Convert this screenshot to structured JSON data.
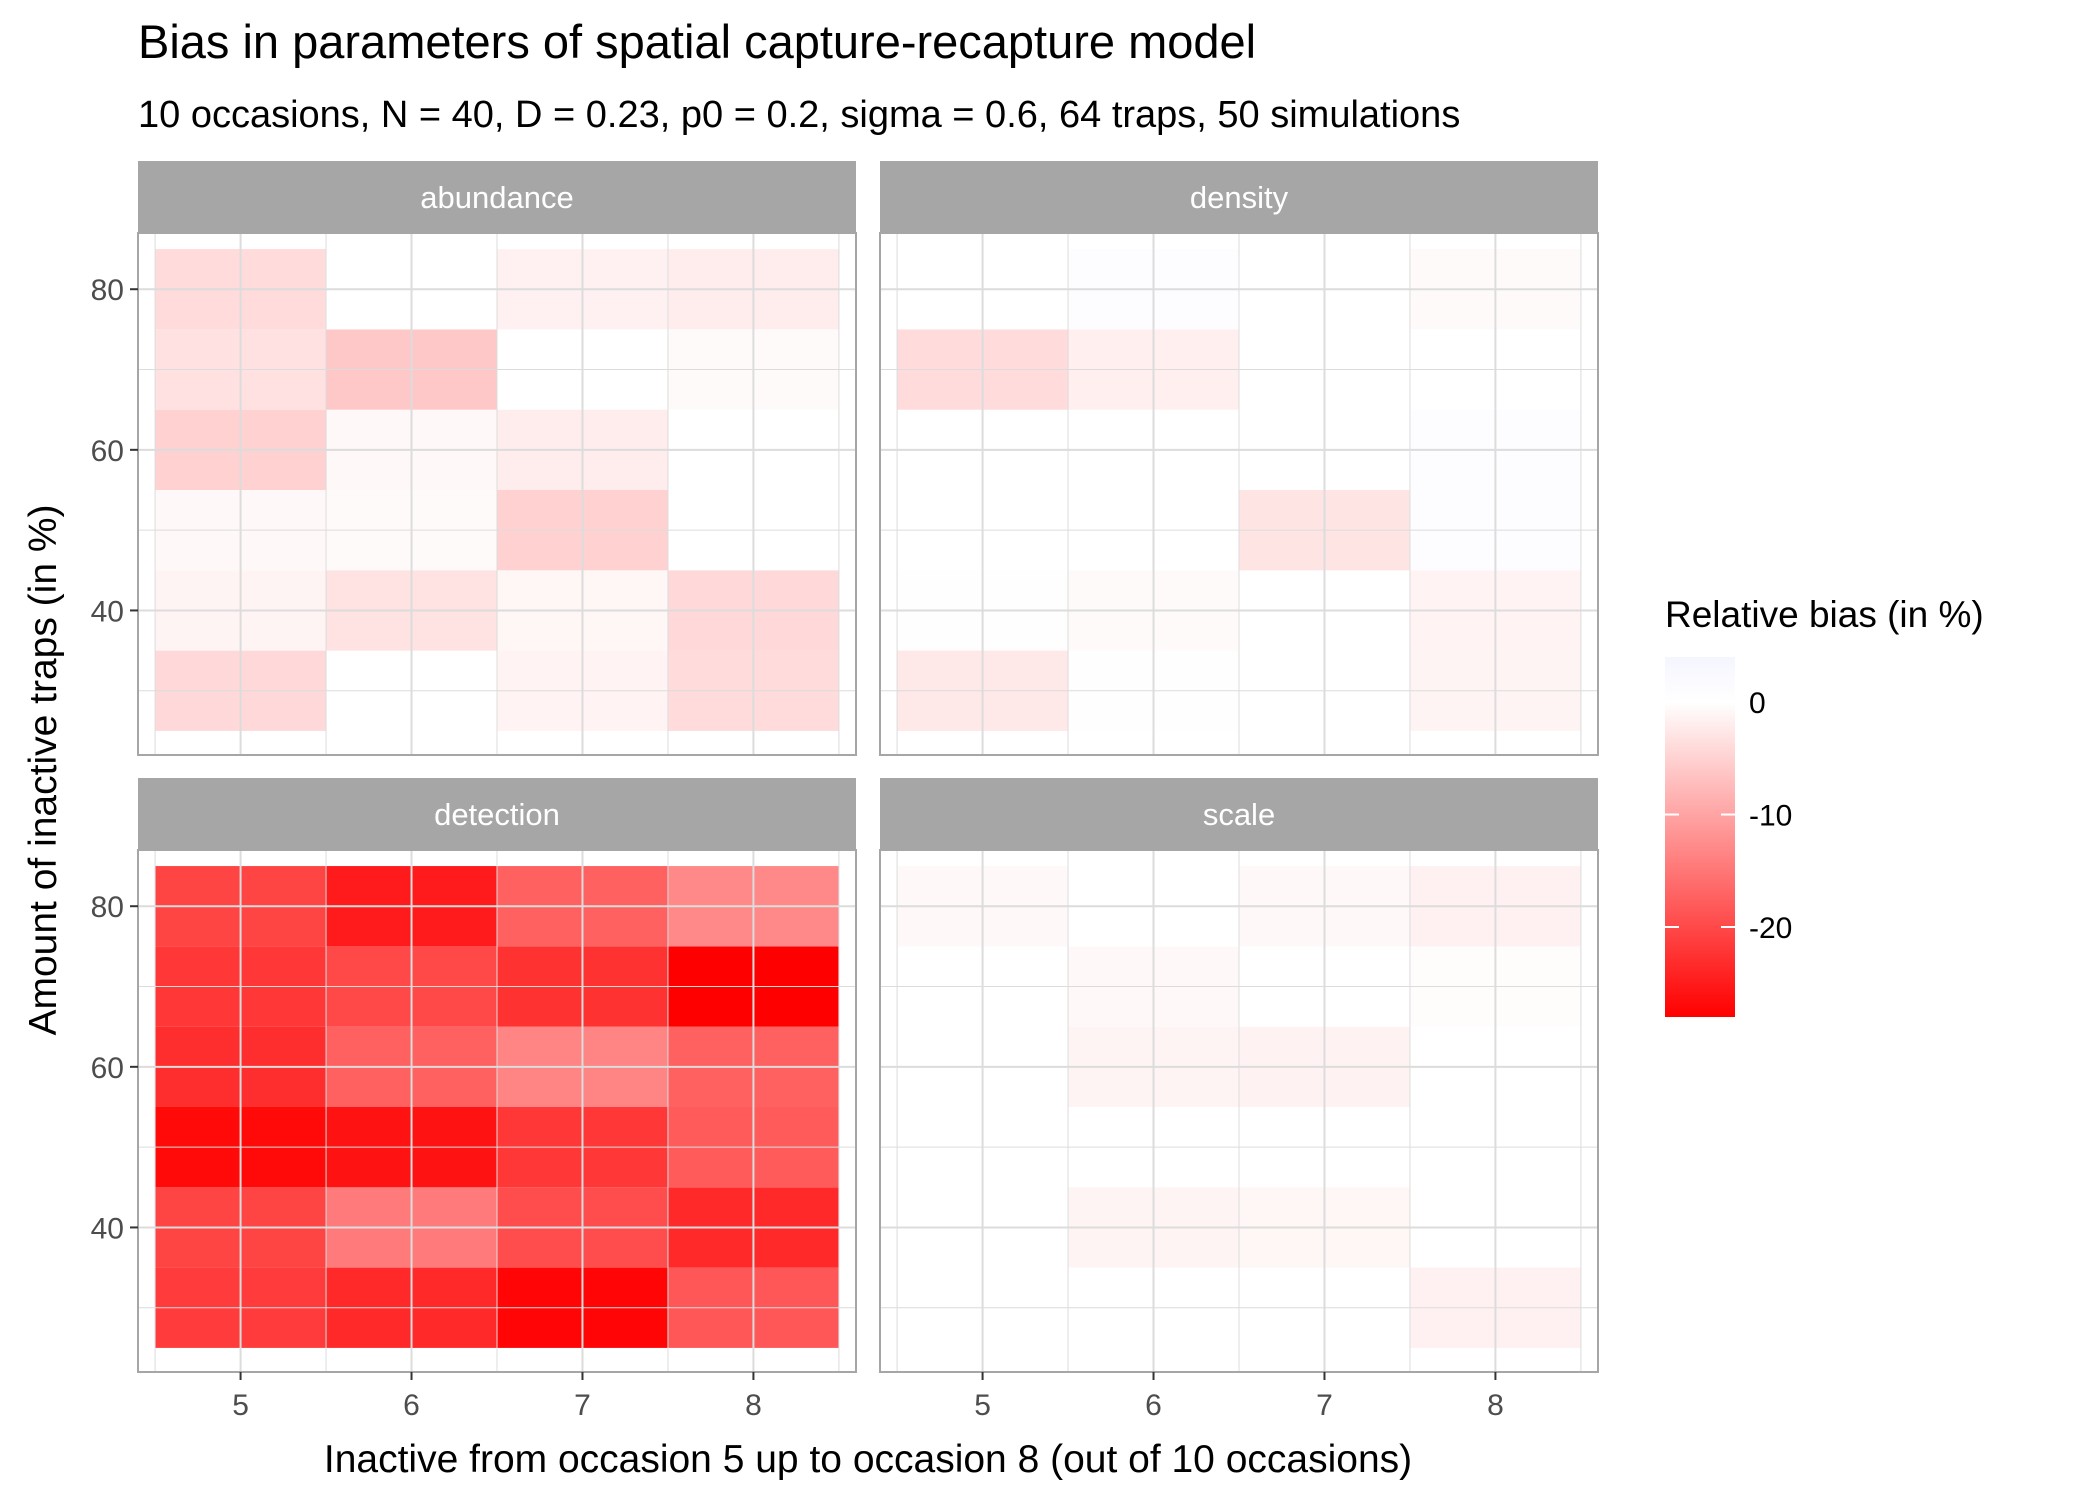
{
  "chart_data": {
    "type": "heatmap",
    "title": "Bias in parameters of spatial capture-recapture model",
    "subtitle": "10 occasions, N = 40, D = 0.23, p0 = 0.2, sigma = 0.6, 64 traps, 50 simulations",
    "xlabel": "Inactive from occasion 5 up to occasion 8 (out of 10 occasions)",
    "ylabel": "Amount of inactive traps (in %)",
    "x_ticks": [
      "5",
      "6",
      "7",
      "8"
    ],
    "y_ticks": [
      "40",
      "60",
      "80"
    ],
    "x_values": [
      5,
      6,
      7,
      8
    ],
    "y_values": [
      30,
      40,
      50,
      60,
      70,
      80
    ],
    "xlim": [
      4.4,
      8.6
    ],
    "ylim": [
      22,
      87
    ],
    "grid": true,
    "legend": {
      "title": "Relative bias (in %)",
      "position": "right",
      "ticks": [
        "0",
        "-10",
        "-20"
      ],
      "tick_values": [
        0,
        -10,
        -20
      ],
      "range": [
        -28,
        4
      ]
    },
    "colors": {
      "low": "#ff0000",
      "mid": "#ffffff",
      "high": "#f5f5ff",
      "strip": "#a6a6a6",
      "grid": "#dcdcdc",
      "border": "#a6a6a6"
    },
    "panels": [
      {
        "label": "abundance",
        "values": [
          [
            -4.2,
            -1.2,
            -0.8,
            -5.0,
            -3.3,
            -4.0
          ],
          [
            0.0,
            -3.2,
            -0.5,
            -0.8,
            -6.0,
            0.0
          ],
          [
            -1.3,
            -1.0,
            -5.0,
            -2.0,
            0.0,
            -1.5
          ],
          [
            -4.0,
            -4.2,
            0.0,
            0.0,
            -0.5,
            -2.0
          ]
        ]
      },
      {
        "label": "density",
        "values": [
          [
            -2.5,
            0.5,
            0.0,
            0.0,
            -4.0,
            0.0
          ],
          [
            0.5,
            -0.5,
            0.0,
            0.0,
            -1.8,
            1.0
          ],
          [
            0.0,
            0.0,
            -3.0,
            0.0,
            0.0,
            0.0
          ],
          [
            -1.2,
            -1.3,
            1.0,
            1.0,
            0.0,
            -0.5
          ]
        ]
      },
      {
        "label": "detection",
        "values": [
          [
            -21.5,
            -20.5,
            -27.0,
            -23.0,
            -22.0,
            -20.5
          ],
          [
            -23.5,
            -14.5,
            -26.0,
            -17.5,
            -20.0,
            -25.0
          ],
          [
            -27.5,
            -19.5,
            -22.0,
            -13.5,
            -22.5,
            -17.5
          ],
          [
            -18.5,
            -23.5,
            -18.0,
            -17.5,
            -28.0,
            -13.0
          ]
        ]
      },
      {
        "label": "scale",
        "values": [
          [
            0.0,
            0.0,
            0.0,
            0.0,
            0.0,
            -0.8
          ],
          [
            0.0,
            -1.2,
            0.0,
            -1.2,
            -0.8,
            0.0
          ],
          [
            0.0,
            -1.0,
            0.0,
            -1.4,
            0.0,
            -0.8
          ],
          [
            -1.5,
            0.0,
            0.0,
            0.0,
            -0.3,
            -1.5
          ]
        ]
      }
    ]
  }
}
